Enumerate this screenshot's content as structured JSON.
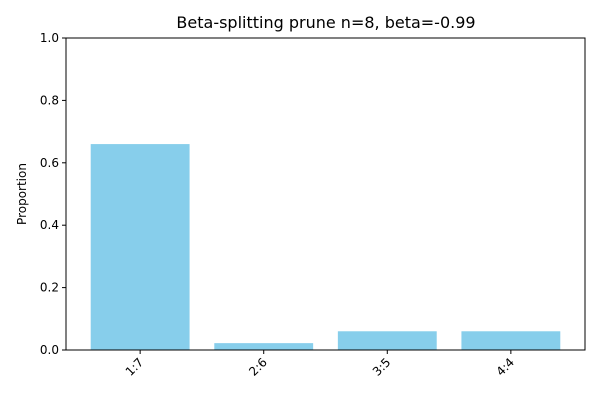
{
  "chart_data": {
    "type": "bar",
    "title": "Beta-splitting prune n=8, beta=-0.99",
    "xlabel": "",
    "ylabel": "Proportion",
    "categories": [
      "1:7",
      "2:6",
      "3:5",
      "4:4"
    ],
    "values": [
      0.66,
      0.022,
      0.06,
      0.06
    ],
    "ylim": [
      0,
      1
    ],
    "yticks": [
      "0.0",
      "0.2",
      "0.4",
      "0.6",
      "0.8",
      "1.0"
    ],
    "bar_color": "#87CEEB",
    "grid": false,
    "legend": "none"
  }
}
